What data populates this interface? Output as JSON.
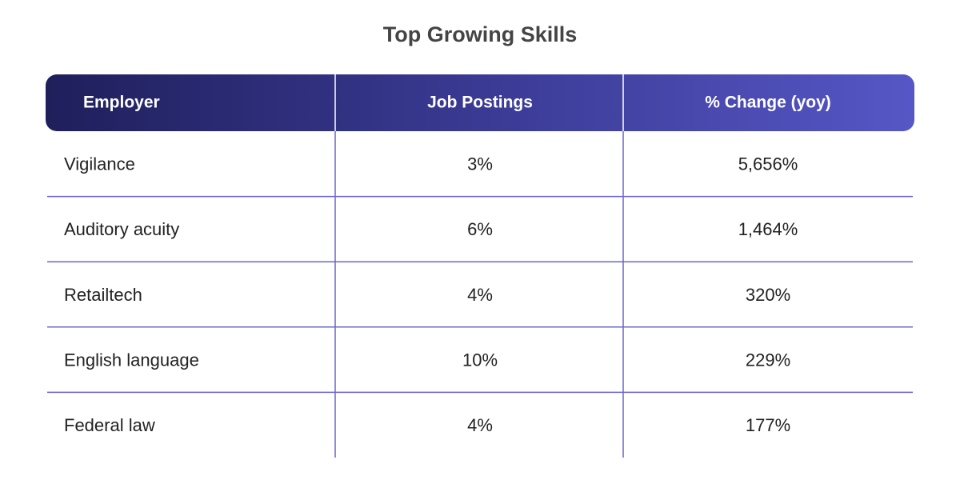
{
  "header": {
    "title": "Top Growing Skills"
  },
  "table": {
    "columns": [
      "Employer",
      "Job Postings",
      "% Change (yoy)"
    ],
    "rows": [
      [
        "Vigilance",
        "3%",
        "5,656%"
      ],
      [
        "Auditory acuity",
        "6%",
        "1,464%"
      ],
      [
        "Retailtech",
        "4%",
        "320%"
      ],
      [
        "English language",
        "10%",
        "229%"
      ],
      [
        "Federal law",
        "4%",
        "177%"
      ]
    ]
  }
}
